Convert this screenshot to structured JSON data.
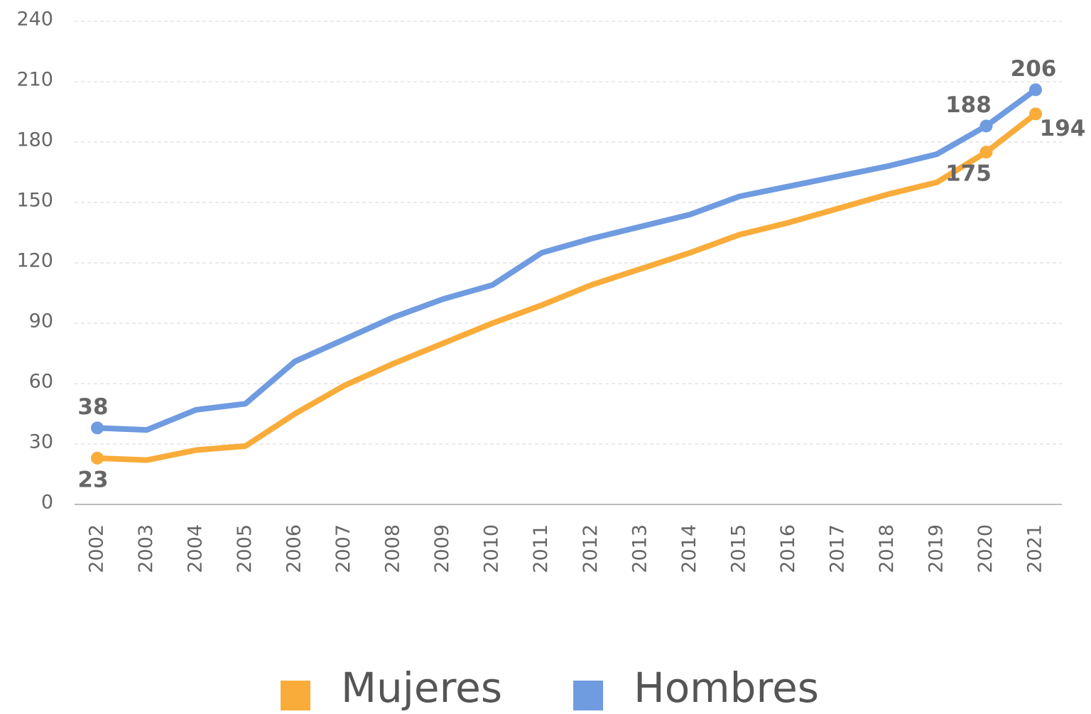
{
  "chart_data": {
    "type": "line",
    "categories": [
      "2002",
      "2003",
      "2004",
      "2005",
      "2006",
      "2007",
      "2008",
      "2009",
      "2010",
      "2011",
      "2012",
      "2013",
      "2014",
      "2015",
      "2016",
      "2017",
      "2018",
      "2019",
      "2020",
      "2021"
    ],
    "series": [
      {
        "name": "Mujeres",
        "color": "#f9ac3a",
        "values": [
          23,
          22,
          27,
          29,
          45,
          59,
          70,
          80,
          90,
          99,
          109,
          117,
          125,
          134,
          140,
          147,
          154,
          160,
          175,
          194
        ],
        "data_label_indices": [
          0,
          18,
          19
        ]
      },
      {
        "name": "Hombres",
        "color": "#6f9be0",
        "values": [
          38,
          37,
          47,
          50,
          71,
          82,
          93,
          102,
          109,
          125,
          132,
          138,
          144,
          153,
          158,
          163,
          168,
          174,
          188,
          206
        ],
        "data_label_indices": [
          0,
          18,
          19
        ]
      }
    ],
    "ylim": [
      0,
      240
    ],
    "yticks": [
      0,
      30,
      60,
      90,
      120,
      150,
      180,
      210,
      240
    ],
    "grid": true,
    "legend": "bottom"
  }
}
